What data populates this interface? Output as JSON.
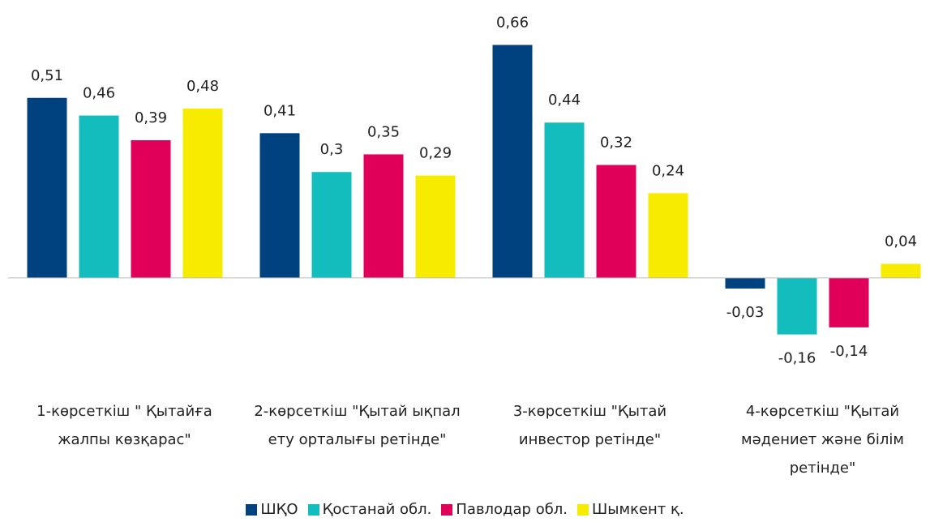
{
  "chart_data": {
    "type": "bar",
    "categories": [
      "1-көрсеткіш \" Қытайға жалпы көзқарас\"",
      "2-көрсеткіш \"Қытай ықпал ету орталығы ретінде\"",
      "3-көрсеткіш \"Қытай инвестор ретінде\"",
      "4-көрсеткіш \"Қытай мәдениет және білім ретінде\""
    ],
    "series": [
      {
        "name": "ШҚО",
        "color": "#00427f",
        "values": [
          0.51,
          0.41,
          0.66,
          -0.03
        ],
        "value_labels": [
          "0,51",
          "0,41",
          "0,66",
          "-0,03"
        ]
      },
      {
        "name": "Қостанай обл.",
        "color": "#13bdbd",
        "values": [
          0.46,
          0.3,
          0.44,
          -0.16
        ],
        "value_labels": [
          "0,46",
          "0,3",
          "0,44",
          "-0,16"
        ]
      },
      {
        "name": "Павлодар обл.",
        "color": "#e0005a",
        "values": [
          0.39,
          0.35,
          0.32,
          -0.14
        ],
        "value_labels": [
          "0,39",
          "0,35",
          "0,32",
          "-0,14"
        ]
      },
      {
        "name": "Шымкент қ.",
        "color": "#f7ec00",
        "values": [
          0.48,
          0.29,
          0.24,
          0.04
        ],
        "value_labels": [
          "0,48",
          "0,29",
          "0,24",
          "0,04"
        ]
      }
    ],
    "ylim": [
      -0.2,
      0.7
    ],
    "legend": "bottom"
  }
}
